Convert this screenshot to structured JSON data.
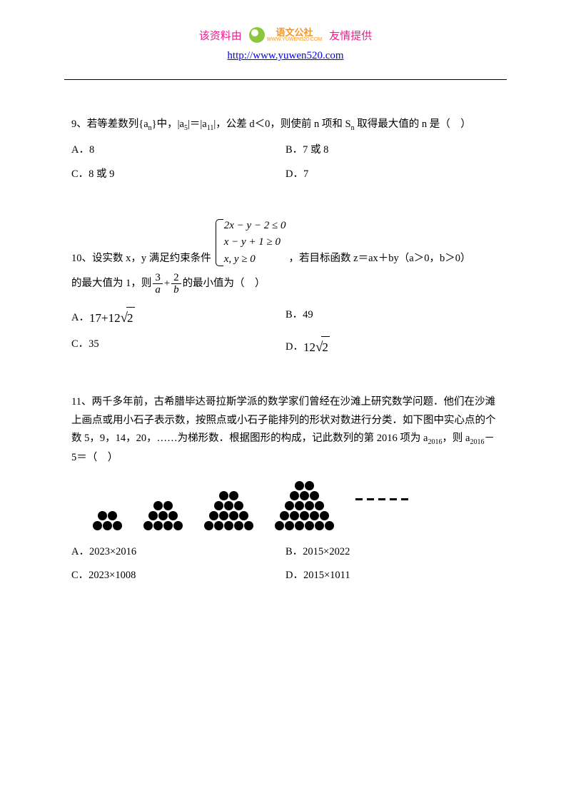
{
  "header": {
    "left_text": "该资料由",
    "right_text": "友情提供",
    "logo_cn": "语文公社",
    "logo_en": "WWW.YUWEN520.COM",
    "url": "http://www.yuwen520.com",
    "text_color": "#ed1c8f",
    "url_color": "#0000ff",
    "logo_orange": "#f7941d",
    "logo_green": "#8cc63f"
  },
  "q9": {
    "num": "9、",
    "text_part1": "若等差数列{a",
    "sub_n": "n",
    "text_part2": "}中，|a",
    "sub_5": "5",
    "text_part3": "|＝|a",
    "sub_11": "11",
    "text_part4": "|，公差 d＜0，则使前 n 项和 S",
    "text_part5": " 取得最大值的 n 是（　）",
    "optA": "A．8",
    "optB": "B．7 或 8",
    "optC": "C．8 或 9",
    "optD": "D．7"
  },
  "q10": {
    "num": "10、",
    "text1": "设实数 x，y 满足约束条件",
    "c1": "2x − y − 2 ≤ 0",
    "c2": "x − y + 1 ≥ 0",
    "c3": "x, y ≥ 0",
    "text2": "，若目标函数 z＝ax＋by（a＞0，b＞0）",
    "text3": "的最大值为 1，则",
    "frac1_num": "3",
    "frac1_den": "a",
    "plus": "+",
    "frac2_num": "2",
    "frac2_den": "b",
    "text4": "的最小值为（　）",
    "optA_pre": "A．",
    "optA_val": "17+12",
    "optA_sqrt": "2",
    "optB": "B．49",
    "optC": "C．35",
    "optD_pre": "D．",
    "optD_val": "12",
    "optD_sqrt": "2"
  },
  "q11": {
    "num": "11、",
    "para1": "两千多年前，古希腊毕达哥拉斯学派的数学家们曾经在沙滩上研究数学问题．他们在沙滩上画点或用小石子表示数，按照点或小石子能排列的形状对数进行分类．如下图中实心点的个数 5，9，14，20，……为梯形数．根据图形的构成，记此数列的第 2016 项为 a",
    "sub_2016": "2016",
    "para2": "，则 a",
    "para3": "－5＝（　）",
    "trapezoid_rows": [
      [
        2,
        3
      ],
      [
        2,
        3,
        4
      ],
      [
        2,
        3,
        4,
        5
      ],
      [
        2,
        3,
        4,
        5,
        6
      ]
    ],
    "dot_color": "#000000",
    "dash_count": 5,
    "optA": "A．2023×2016",
    "optB": "B．2015×2022",
    "optC": "C．2023×1008",
    "optD": "D．2015×1011"
  }
}
